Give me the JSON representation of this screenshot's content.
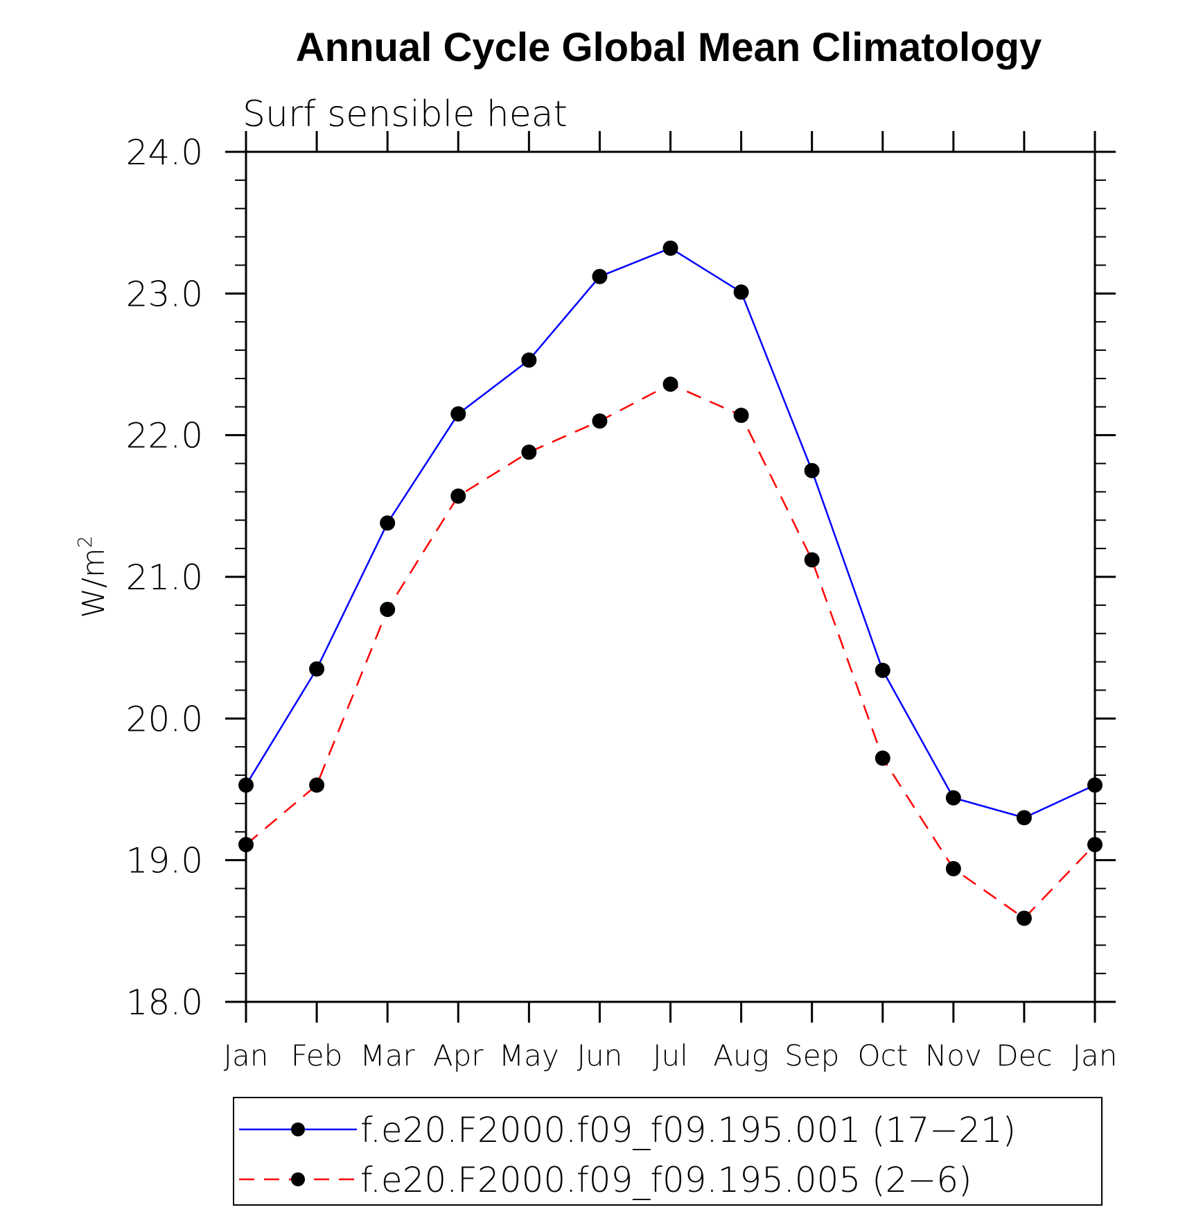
{
  "chart_data": {
    "type": "line",
    "title": "Annual Cycle Global Mean Climatology",
    "subtitle": "Surf sensible heat",
    "xlabel": "",
    "ylabel": "W/m",
    "ylabel_superscript": "2",
    "categories": [
      "Jan",
      "Feb",
      "Mar",
      "Apr",
      "May",
      "Jun",
      "Jul",
      "Aug",
      "Sep",
      "Oct",
      "Nov",
      "Dec",
      "Jan"
    ],
    "ylim": [
      18.0,
      24.0
    ],
    "yticks": [
      "18.0",
      "19.0",
      "20.0",
      "21.0",
      "22.0",
      "23.0",
      "24.0"
    ],
    "grid": false,
    "legend_position": "bottom",
    "series": [
      {
        "name": "f.e20.F2000.f09_f09.195.001 (17−21)",
        "color": "#0000ff",
        "line_style": "solid",
        "marker": "filled-circle",
        "values": [
          19.53,
          20.35,
          21.38,
          22.15,
          22.53,
          23.12,
          23.32,
          23.01,
          21.75,
          20.34,
          19.44,
          19.3,
          19.53
        ]
      },
      {
        "name": "f.e20.F2000.f09_f09.195.005 (2−6)",
        "color": "#ff0000",
        "line_style": "dashed",
        "marker": "filled-circle",
        "values": [
          19.11,
          19.53,
          20.77,
          21.57,
          21.88,
          22.1,
          22.36,
          22.14,
          21.12,
          19.72,
          18.94,
          18.59,
          19.11
        ]
      }
    ]
  }
}
